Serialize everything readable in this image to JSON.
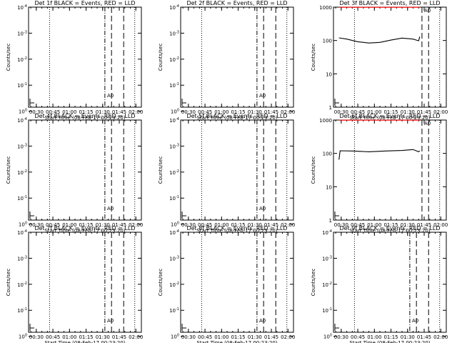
{
  "chart_data": [
    {
      "type": "line",
      "title": "Det 1f BLACK = Events, RED = LLD",
      "xlabel": "Start Time (08-Feb-17 00:23:20)",
      "ylabel": "Counts/sec",
      "yscale": "log",
      "ylim": [
        0.7,
        0.0001
      ],
      "y_ticks": [
        "10^0",
        "10^-1",
        "10^-2",
        "10^-3",
        "10^-4"
      ],
      "x_ticks": [
        "00:30",
        "00:45",
        "01:00",
        "01:15",
        "01:30",
        "01:45",
        "02:00"
      ],
      "xlim_min": [
        23,
        125
      ],
      "ylim_order": "reversed",
      "markers_min": {
        "dotted": [
          42,
          119
        ],
        "dashdot": [
          92
        ],
        "dashed": [
          98,
          109
        ]
      },
      "series": [
        {
          "color": "#000000",
          "points": []
        },
        {
          "color": "#ff0000",
          "points": []
        }
      ],
      "annotation": "A0"
    },
    {
      "type": "line",
      "title": "Det 2f BLACK = Events, RED = LLD",
      "xlabel": "Start Time (08-Feb-17 00:23:20)",
      "ylabel": "Counts/sec",
      "yscale": "log",
      "ylim": [
        0.7,
        0.0001
      ],
      "y_ticks": [
        "10^0",
        "10^-1",
        "10^-2",
        "10^-3",
        "10^-4"
      ],
      "x_ticks": [
        "00:30",
        "00:45",
        "01:00",
        "01:15",
        "01:30",
        "01:45",
        "02:00"
      ],
      "xlim_min": [
        23,
        125
      ],
      "ylim_order": "reversed",
      "markers_min": {
        "dotted": [
          42,
          119
        ],
        "dashdot": [
          92
        ],
        "dashed": [
          98,
          109
        ]
      },
      "series": [
        {
          "color": "#000000",
          "points": []
        },
        {
          "color": "#ff0000",
          "points": []
        }
      ],
      "annotation": "A0"
    },
    {
      "type": "line",
      "title": "Det 3f BLACK = Events, RED = LLD",
      "xlabel": "Start Time (08-Feb-17 00:23:20)",
      "ylabel": "Counts/sec",
      "yscale": "log",
      "ylim": [
        1,
        1000
      ],
      "y_ticks": [
        "1",
        "10",
        "100",
        "1000"
      ],
      "x_ticks": [
        "00:30",
        "00:45",
        "01:00",
        "01:15",
        "01:30",
        "01:45",
        "02:00"
      ],
      "xlim_min": [
        23,
        125
      ],
      "ylim_order": "normal",
      "markers_min": {
        "dotted": [
          42,
          119
        ],
        "dashdot": [],
        "dashed": [
          103,
          109
        ]
      },
      "series": [
        {
          "color": "#000000",
          "points": [
            [
              28,
              120
            ],
            [
              35,
              110
            ],
            [
              45,
              92
            ],
            [
              55,
              84
            ],
            [
              65,
              88
            ],
            [
              75,
              103
            ],
            [
              85,
              118
            ],
            [
              95,
              110
            ],
            [
              100,
              98
            ],
            [
              101,
              130
            ]
          ]
        },
        {
          "color": "#ff0000",
          "points": [
            [
              28,
              990
            ],
            [
              101,
              990
            ]
          ]
        }
      ],
      "annotation": "A0"
    },
    {
      "type": "line",
      "title": "Det 4f BLACK = Events, RED = LLD",
      "xlabel": "Start Time (08-Feb-17 00:23:20)",
      "ylabel": "Counts/sec",
      "yscale": "log",
      "ylim": [
        0.7,
        0.0001
      ],
      "y_ticks": [
        "10^0",
        "10^-1",
        "10^-2",
        "10^-3",
        "10^-4"
      ],
      "x_ticks": [
        "00:30",
        "00:45",
        "01:00",
        "01:15",
        "01:30",
        "01:45",
        "02:00"
      ],
      "xlim_min": [
        23,
        125
      ],
      "ylim_order": "reversed",
      "markers_min": {
        "dotted": [
          42,
          119
        ],
        "dashdot": [
          92
        ],
        "dashed": [
          98,
          109
        ]
      },
      "series": [
        {
          "color": "#000000",
          "points": []
        },
        {
          "color": "#ff0000",
          "points": []
        }
      ],
      "annotation": "A0"
    },
    {
      "type": "line",
      "title": "Det 5f BLACK = Events, RED = LLD",
      "xlabel": "Start Time (08-Feb-17 00:23:20)",
      "ylabel": "Counts/sec",
      "yscale": "log",
      "ylim": [
        0.7,
        0.0001
      ],
      "y_ticks": [
        "10^0",
        "10^-1",
        "10^-2",
        "10^-3",
        "10^-4"
      ],
      "x_ticks": [
        "00:30",
        "00:45",
        "01:00",
        "01:15",
        "01:30",
        "01:45",
        "02:00"
      ],
      "xlim_min": [
        23,
        125
      ],
      "ylim_order": "reversed",
      "markers_min": {
        "dotted": [
          42,
          119
        ],
        "dashdot": [
          92
        ],
        "dashed": [
          98,
          109
        ]
      },
      "series": [
        {
          "color": "#000000",
          "points": []
        },
        {
          "color": "#ff0000",
          "points": []
        }
      ],
      "annotation": "A0"
    },
    {
      "type": "line",
      "title": "Det 6f BLACK = Events, RED = LLD",
      "xlabel": "Start Time (08-Feb-17 00:23:20)",
      "ylabel": "Counts/sec",
      "yscale": "log",
      "ylim": [
        1,
        1000
      ],
      "y_ticks": [
        "1",
        "10",
        "100",
        "1000"
      ],
      "x_ticks": [
        "00:30",
        "00:45",
        "01:00",
        "01:15",
        "01:30",
        "01:45",
        "02:00"
      ],
      "xlim_min": [
        23,
        125
      ],
      "ylim_order": "normal",
      "markers_min": {
        "dotted": [
          42,
          119
        ],
        "dashdot": [],
        "dashed": [
          103,
          109
        ]
      },
      "series": [
        {
          "color": "#000000",
          "points": [
            [
              28,
              65
            ],
            [
              29,
              120
            ],
            [
              40,
              118
            ],
            [
              55,
              112
            ],
            [
              70,
              118
            ],
            [
              85,
              122
            ],
            [
              95,
              130
            ],
            [
              100,
              112
            ],
            [
              101,
              120
            ]
          ]
        },
        {
          "color": "#ff0000",
          "points": [
            [
              28,
              990
            ],
            [
              101,
              990
            ]
          ]
        }
      ],
      "annotation": "A0"
    },
    {
      "type": "line",
      "title": "Det 7f BLACK = Events, RED = LLD",
      "xlabel": "Start Time (08-Feb-17 00:23:20)",
      "ylabel": "Counts/sec",
      "yscale": "log",
      "ylim": [
        0.7,
        0.0001
      ],
      "y_ticks": [
        "10^0",
        "10^-1",
        "10^-2",
        "10^-3",
        "10^-4"
      ],
      "x_ticks": [
        "00:30",
        "00:45",
        "01:00",
        "01:15",
        "01:30",
        "01:45",
        "02:00"
      ],
      "xlim_min": [
        23,
        125
      ],
      "ylim_order": "reversed",
      "markers_min": {
        "dotted": [
          42,
          119
        ],
        "dashdot": [
          92
        ],
        "dashed": [
          98,
          109
        ]
      },
      "series": [
        {
          "color": "#000000",
          "points": []
        },
        {
          "color": "#ff0000",
          "points": []
        }
      ],
      "annotation": "A0"
    },
    {
      "type": "line",
      "title": "Det 8f BLACK = Events, RED = LLD",
      "xlabel": "Start Time (08-Feb-17 00:23:20)",
      "ylabel": "Counts/sec",
      "yscale": "log",
      "ylim": [
        0.7,
        0.0001
      ],
      "y_ticks": [
        "10^0",
        "10^-1",
        "10^-2",
        "10^-3",
        "10^-4"
      ],
      "x_ticks": [
        "00:30",
        "00:45",
        "01:00",
        "01:15",
        "01:30",
        "01:45",
        "02:00"
      ],
      "xlim_min": [
        23,
        125
      ],
      "ylim_order": "reversed",
      "markers_min": {
        "dotted": [
          42,
          119
        ],
        "dashdot": [
          92
        ],
        "dashed": [
          98,
          109
        ]
      },
      "series": [
        {
          "color": "#000000",
          "points": []
        },
        {
          "color": "#ff0000",
          "points": []
        }
      ],
      "annotation": "A0"
    },
    {
      "type": "line",
      "title": "Det 9f BLACK = Events, RED = LLD",
      "xlabel": "Start Time (08-Feb-17 00:23:20)",
      "ylabel": "Counts/sec",
      "yscale": "log",
      "ylim": [
        0.7,
        0.0001
      ],
      "y_ticks": [
        "10^0",
        "10^-1",
        "10^-2",
        "10^-3",
        "10^-4"
      ],
      "x_ticks": [
        "00:30",
        "00:45",
        "01:00",
        "01:15",
        "01:30",
        "01:45",
        "02:00"
      ],
      "xlim_min": [
        23,
        125
      ],
      "ylim_order": "reversed",
      "markers_min": {
        "dotted": [
          42,
          119
        ],
        "dashdot": [
          92
        ],
        "dashed": [
          98,
          109
        ]
      },
      "series": [
        {
          "color": "#000000",
          "points": []
        },
        {
          "color": "#ff0000",
          "points": []
        }
      ],
      "annotation": "A0"
    }
  ]
}
